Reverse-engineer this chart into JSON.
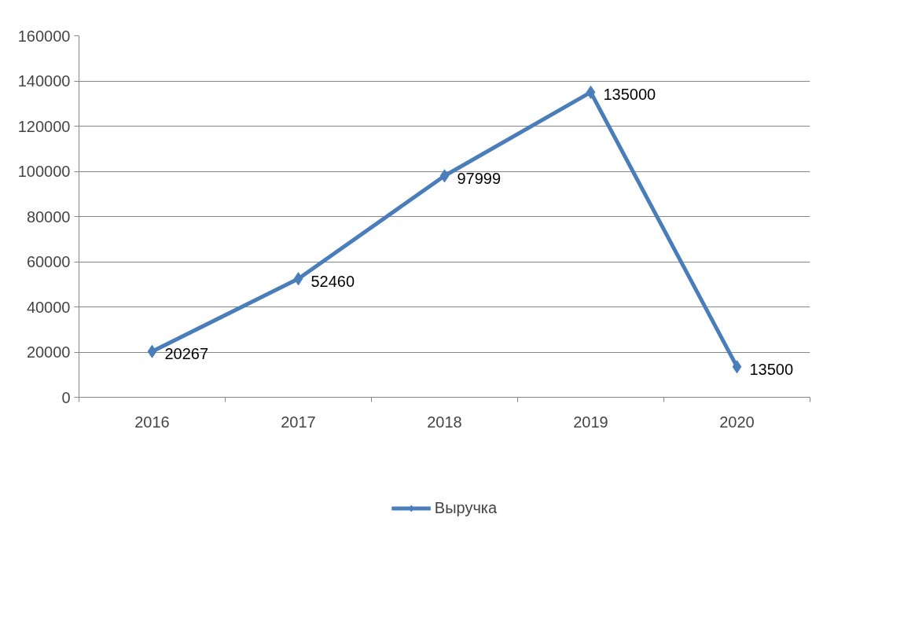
{
  "chart_data": {
    "type": "line",
    "categories": [
      "2016",
      "2017",
      "2018",
      "2019",
      "2020"
    ],
    "series": [
      {
        "name": "Выручка",
        "color": "#4a7ebb",
        "values": [
          20267,
          52460,
          97999,
          135000,
          13500
        ]
      }
    ],
    "ylim": [
      0,
      160000
    ],
    "yticks": [
      0,
      20000,
      40000,
      60000,
      80000,
      100000,
      120000,
      140000,
      160000
    ],
    "grid": "y",
    "legend": "bottom",
    "marker": "diamond",
    "line_style": "solid",
    "data_labels": true
  }
}
